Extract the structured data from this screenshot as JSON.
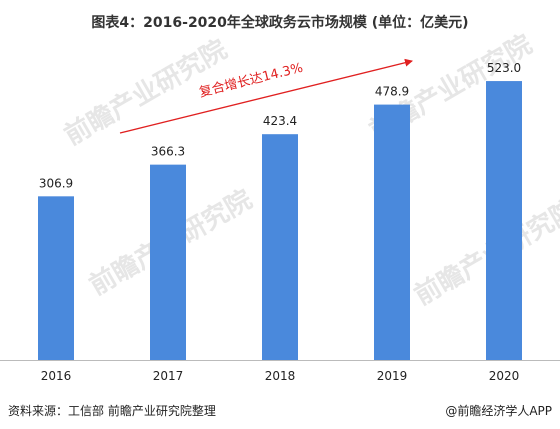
{
  "chart_data": {
    "type": "bar",
    "title": "图表4：2016-2020年全球政务云市场规模 (单位：亿美元)",
    "categories": [
      "2016",
      "2017",
      "2018",
      "2019",
      "2020"
    ],
    "values": [
      306.9,
      366.3,
      423.4,
      478.9,
      523.0
    ],
    "value_labels": [
      "306.9",
      "366.3",
      "423.4",
      "478.9",
      "523.0"
    ],
    "ylim": [
      0,
      600
    ],
    "grid": false,
    "annotation": "复合增长达14.3%",
    "colors": {
      "bar": "#4a89dc",
      "annotation": "#e02020",
      "axis": "#bbbbbb"
    }
  },
  "watermark": "前瞻产业研究院",
  "footer": {
    "source": "资料来源：工信部 前瞻产业研究院整理",
    "brand": "@前瞻经济学人APP"
  }
}
